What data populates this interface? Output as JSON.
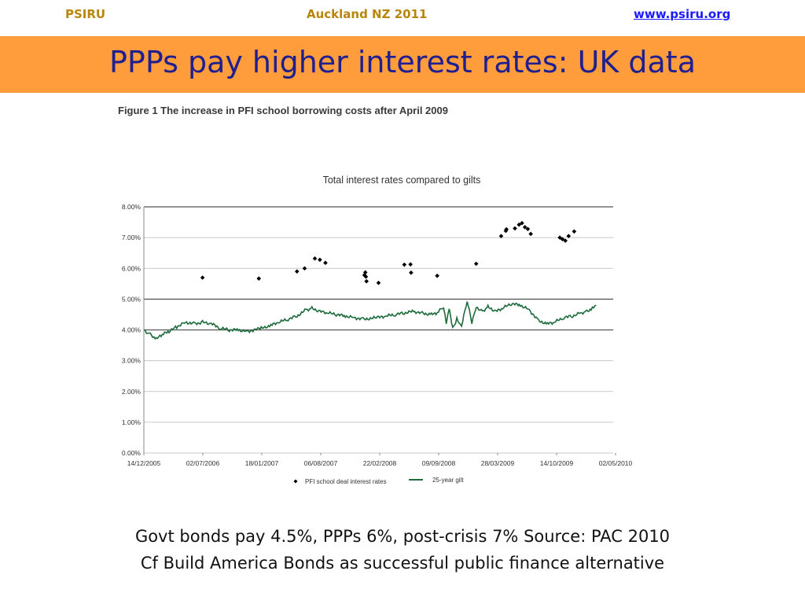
{
  "header": {
    "left": "PSIRU",
    "center": "Auckland NZ 2011",
    "right": "www.psiru.org"
  },
  "slide_title": "PPPs pay higher interest rates: UK data",
  "figure_caption": "Figure 1 The increase in PFI school borrowing costs after April 2009",
  "footer": {
    "line1": "Govt bonds pay 4.5%, PPPs 6%, post-crisis 7% Source: PAC 2010",
    "line2": "Cf Build America Bonds as successful public finance alternative"
  },
  "colors": {
    "header_text": "#b8860b",
    "link": "#1a1aff",
    "title_band": "#ff9d3c",
    "title_text": "#1f1f8f",
    "gilt_line": "#1e6b3c",
    "pfi_marker": "#000000"
  },
  "chart_data": {
    "type": "line",
    "title": "Total interest rates compared to gilts",
    "xlabel": "",
    "ylabel": "",
    "y_unit": "%",
    "ylim": [
      0,
      8
    ],
    "y_ticks": [
      "0.00%",
      "1.00%",
      "2.00%",
      "3.00%",
      "4.00%",
      "5.00%",
      "6.00%",
      "7.00%",
      "8.00%"
    ],
    "x_ticks": [
      "14/12/2005",
      "02/07/2006",
      "18/01/2007",
      "06/08/2007",
      "22/02/2008",
      "09/09/2008",
      "28/03/2009",
      "14/10/2009",
      "02/05/2010"
    ],
    "grid": true,
    "legend_position": "bottom",
    "series": [
      {
        "name": "PFI school deal interest rates",
        "kind": "scatter",
        "marker": "diamond",
        "points": [
          [
            "2006-07-02",
            5.7
          ],
          [
            "2007-01-10",
            5.67
          ],
          [
            "2007-05-20",
            5.9
          ],
          [
            "2007-06-15",
            6.0
          ],
          [
            "2007-07-20",
            6.32
          ],
          [
            "2007-08-06",
            6.28
          ],
          [
            "2007-08-25",
            6.18
          ],
          [
            "2008-01-05",
            5.78
          ],
          [
            "2008-01-08",
            5.87
          ],
          [
            "2008-01-10",
            5.73
          ],
          [
            "2008-01-12",
            5.58
          ],
          [
            "2008-02-22",
            5.53
          ],
          [
            "2008-05-20",
            6.12
          ],
          [
            "2008-06-10",
            6.13
          ],
          [
            "2008-06-12",
            5.86
          ],
          [
            "2008-09-09",
            5.76
          ],
          [
            "2009-01-20",
            6.15
          ],
          [
            "2009-04-15",
            7.05
          ],
          [
            "2009-05-01",
            7.22
          ],
          [
            "2009-05-03",
            7.27
          ],
          [
            "2009-06-01",
            7.3
          ],
          [
            "2009-06-15",
            7.42
          ],
          [
            "2009-06-25",
            7.47
          ],
          [
            "2009-07-05",
            7.34
          ],
          [
            "2009-07-15",
            7.28
          ],
          [
            "2009-07-25",
            7.12
          ],
          [
            "2009-11-01",
            7.0
          ],
          [
            "2009-11-10",
            6.95
          ],
          [
            "2009-11-20",
            6.9
          ],
          [
            "2009-12-01",
            7.05
          ],
          [
            "2009-12-20",
            7.2
          ]
        ]
      },
      {
        "name": "25-year gilt",
        "kind": "line",
        "points": [
          [
            "2005-12-14",
            4.0
          ],
          [
            "2006-01-05",
            3.85
          ],
          [
            "2006-01-25",
            3.7
          ],
          [
            "2006-02-15",
            3.85
          ],
          [
            "2006-03-10",
            3.95
          ],
          [
            "2006-04-05",
            4.1
          ],
          [
            "2006-05-05",
            4.25
          ],
          [
            "2006-06-05",
            4.2
          ],
          [
            "2006-07-02",
            4.25
          ],
          [
            "2006-08-01",
            4.2
          ],
          [
            "2006-09-01",
            4.05
          ],
          [
            "2006-10-01",
            4.0
          ],
          [
            "2006-11-01",
            4.0
          ],
          [
            "2006-12-01",
            3.95
          ],
          [
            "2007-01-18",
            4.05
          ],
          [
            "2007-02-20",
            4.15
          ],
          [
            "2007-03-20",
            4.25
          ],
          [
            "2007-04-20",
            4.35
          ],
          [
            "2007-05-20",
            4.45
          ],
          [
            "2007-06-20",
            4.65
          ],
          [
            "2007-07-10",
            4.7
          ],
          [
            "2007-08-06",
            4.6
          ],
          [
            "2007-09-01",
            4.55
          ],
          [
            "2007-10-01",
            4.5
          ],
          [
            "2007-11-01",
            4.45
          ],
          [
            "2007-12-01",
            4.4
          ],
          [
            "2008-01-01",
            4.35
          ],
          [
            "2008-02-22",
            4.4
          ],
          [
            "2008-03-20",
            4.45
          ],
          [
            "2008-04-20",
            4.5
          ],
          [
            "2008-05-20",
            4.55
          ],
          [
            "2008-06-20",
            4.6
          ],
          [
            "2008-07-20",
            4.55
          ],
          [
            "2008-08-20",
            4.5
          ],
          [
            "2008-09-09",
            4.55
          ],
          [
            "2008-10-01",
            4.75
          ],
          [
            "2008-10-10",
            4.25
          ],
          [
            "2008-10-20",
            4.7
          ],
          [
            "2008-11-01",
            4.05
          ],
          [
            "2008-11-15",
            4.35
          ],
          [
            "2008-12-01",
            4.1
          ],
          [
            "2008-12-20",
            4.95
          ],
          [
            "2009-01-05",
            4.25
          ],
          [
            "2009-01-20",
            4.75
          ],
          [
            "2009-02-10",
            4.6
          ],
          [
            "2009-03-01",
            4.75
          ],
          [
            "2009-03-28",
            4.6
          ],
          [
            "2009-04-20",
            4.7
          ],
          [
            "2009-05-20",
            4.85
          ],
          [
            "2009-06-20",
            4.8
          ],
          [
            "2009-07-20",
            4.65
          ],
          [
            "2009-08-20",
            4.3
          ],
          [
            "2009-09-20",
            4.2
          ],
          [
            "2009-10-14",
            4.25
          ],
          [
            "2009-11-15",
            4.4
          ],
          [
            "2009-12-15",
            4.45
          ],
          [
            "2010-01-10",
            4.55
          ],
          [
            "2010-02-01",
            4.6
          ],
          [
            "2010-02-20",
            4.7
          ],
          [
            "2010-03-05",
            4.8
          ]
        ]
      }
    ]
  }
}
